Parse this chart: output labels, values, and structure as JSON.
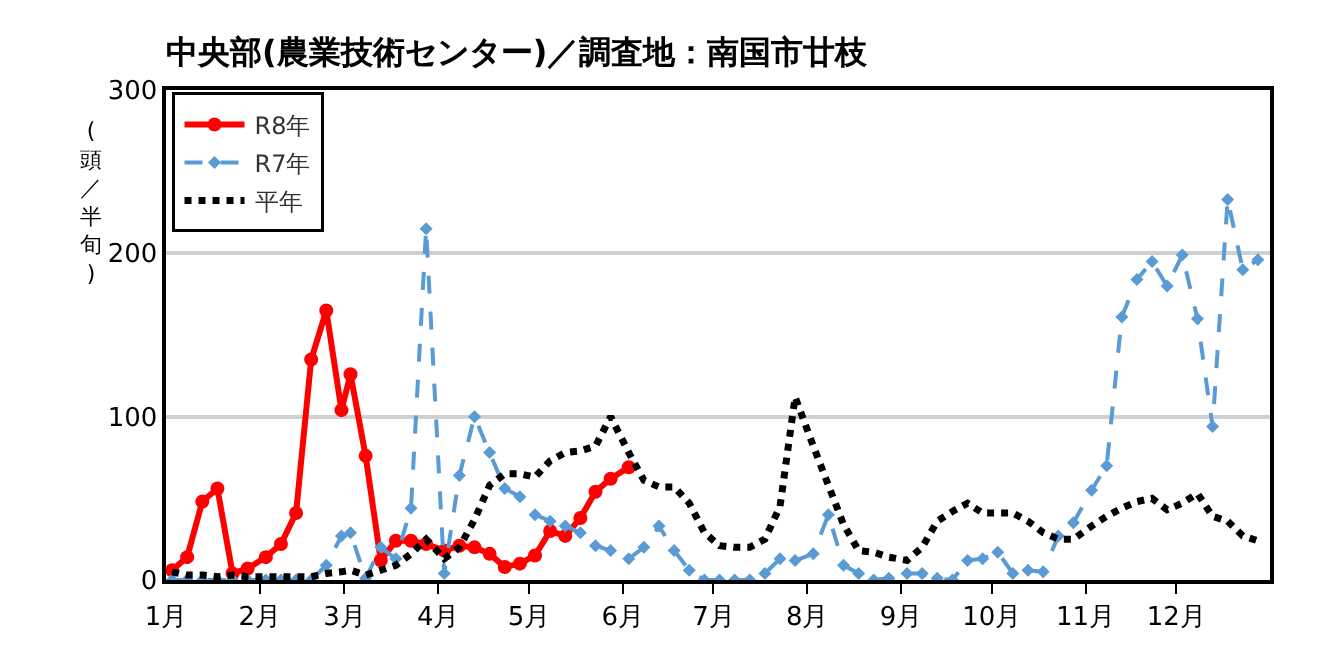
{
  "chart_data": {
    "type": "line",
    "title": "中央部(農業技術センター)／調査地：南国市廿枝",
    "ylabel": "(頭／半旬)",
    "x": [
      "--01-03",
      "--01-08",
      "--01-13",
      "--01-18",
      "--01-23",
      "--01-28",
      "--02-03",
      "--02-08",
      "--02-13",
      "--02-18",
      "--02-23",
      "--02-28",
      "--03-03",
      "--03-08",
      "--03-13",
      "--03-18",
      "--03-23",
      "--03-28",
      "--04-03",
      "--04-08",
      "--04-13",
      "--04-18",
      "--04-23",
      "--04-28",
      "--05-03",
      "--05-08",
      "--05-13",
      "--05-18",
      "--05-23",
      "--05-28",
      "--06-03",
      "--06-08",
      "--06-13",
      "--06-18",
      "--06-23",
      "--06-28",
      "--07-03",
      "--07-08",
      "--07-13",
      "--07-18",
      "--07-23",
      "--07-28",
      "--08-03",
      "--08-08",
      "--08-13",
      "--08-18",
      "--08-23",
      "--08-28",
      "--09-03",
      "--09-08",
      "--09-13",
      "--09-18",
      "--09-23",
      "--09-28",
      "--10-03",
      "--10-08",
      "--10-13",
      "--10-18",
      "--10-23",
      "--10-28",
      "--11-03",
      "--11-08",
      "--11-13",
      "--11-18",
      "--11-23",
      "--11-28",
      "--12-03",
      "--12-08",
      "--12-13",
      "--12-18",
      "--12-23",
      "--12-28"
    ],
    "xlim": [
      "--01-01",
      "--12-31"
    ],
    "xticks": [
      {
        "value": "--01-01",
        "label": "1月"
      },
      {
        "value": "--02-01",
        "label": "2月"
      },
      {
        "value": "--03-01",
        "label": "3月"
      },
      {
        "value": "--04-01",
        "label": "4月"
      },
      {
        "value": "--05-01",
        "label": "5月"
      },
      {
        "value": "--06-01",
        "label": "6月"
      },
      {
        "value": "--07-01",
        "label": "7月"
      },
      {
        "value": "--08-01",
        "label": "8月"
      },
      {
        "value": "--09-01",
        "label": "9月"
      },
      {
        "value": "--10-01",
        "label": "10月"
      },
      {
        "value": "--11-01",
        "label": "11月"
      },
      {
        "value": "--12-01",
        "label": "12月"
      }
    ],
    "ylim": [
      0,
      300
    ],
    "yticks": [
      0,
      100,
      200,
      300
    ],
    "grid": "y",
    "legend": "top left",
    "series": [
      {
        "name": "R8年",
        "color": "#ff0000",
        "line_style": "solid",
        "marker": "circle",
        "values": [
          6,
          14,
          48,
          56,
          4,
          7,
          14,
          22,
          41,
          135,
          165,
          104,
          126,
          76,
          12,
          24,
          24,
          22,
          18,
          21,
          20,
          16,
          8,
          10,
          15,
          30,
          27,
          38,
          54,
          62,
          69,
          null,
          null,
          null,
          null,
          null,
          null,
          null,
          null,
          null,
          null,
          null,
          null,
          null,
          null,
          null,
          null,
          null,
          null,
          null,
          null,
          null,
          null,
          null,
          null,
          null,
          null,
          null,
          null,
          null,
          null,
          null,
          null,
          null,
          null,
          null,
          null,
          null,
          null,
          null,
          null,
          null
        ]
      },
      {
        "name": "R7年",
        "color": "#5b9bd5",
        "line_style": "dashed",
        "marker": "diamond",
        "values": [
          0,
          0,
          0,
          0,
          0,
          0,
          0,
          0,
          0,
          0,
          9,
          27,
          29,
          1,
          20,
          13,
          44,
          215,
          4,
          64,
          100,
          78,
          56,
          51,
          40,
          36,
          33,
          29,
          21,
          18,
          13,
          20,
          33,
          18,
          6,
          0,
          0,
          0,
          0,
          4,
          13,
          12,
          16,
          40,
          9,
          4,
          0,
          1,
          4,
          4,
          1,
          0,
          12,
          13,
          17,
          4,
          6,
          5,
          27,
          35,
          55,
          70,
          161,
          184,
          195,
          180,
          199,
          160,
          94,
          233,
          190,
          196
        ]
      },
      {
        "name": "平年",
        "color": "#000000",
        "line_style": "dotted",
        "marker": "none",
        "values": [
          5,
          3,
          3,
          2,
          3,
          2,
          2,
          2,
          2,
          2,
          4,
          5,
          6,
          3,
          6,
          9,
          16,
          25,
          13,
          20,
          37,
          58,
          65,
          65,
          63,
          73,
          78,
          79,
          82,
          100,
          78,
          61,
          57,
          57,
          47,
          29,
          21,
          20,
          20,
          25,
          45,
          112,
          82,
          58,
          34,
          18,
          17,
          14,
          12,
          20,
          36,
          42,
          47,
          41,
          41,
          41,
          36,
          29,
          25,
          25,
          33,
          39,
          44,
          48,
          50,
          43,
          47,
          53,
          39,
          36,
          27,
          24
        ]
      }
    ]
  }
}
